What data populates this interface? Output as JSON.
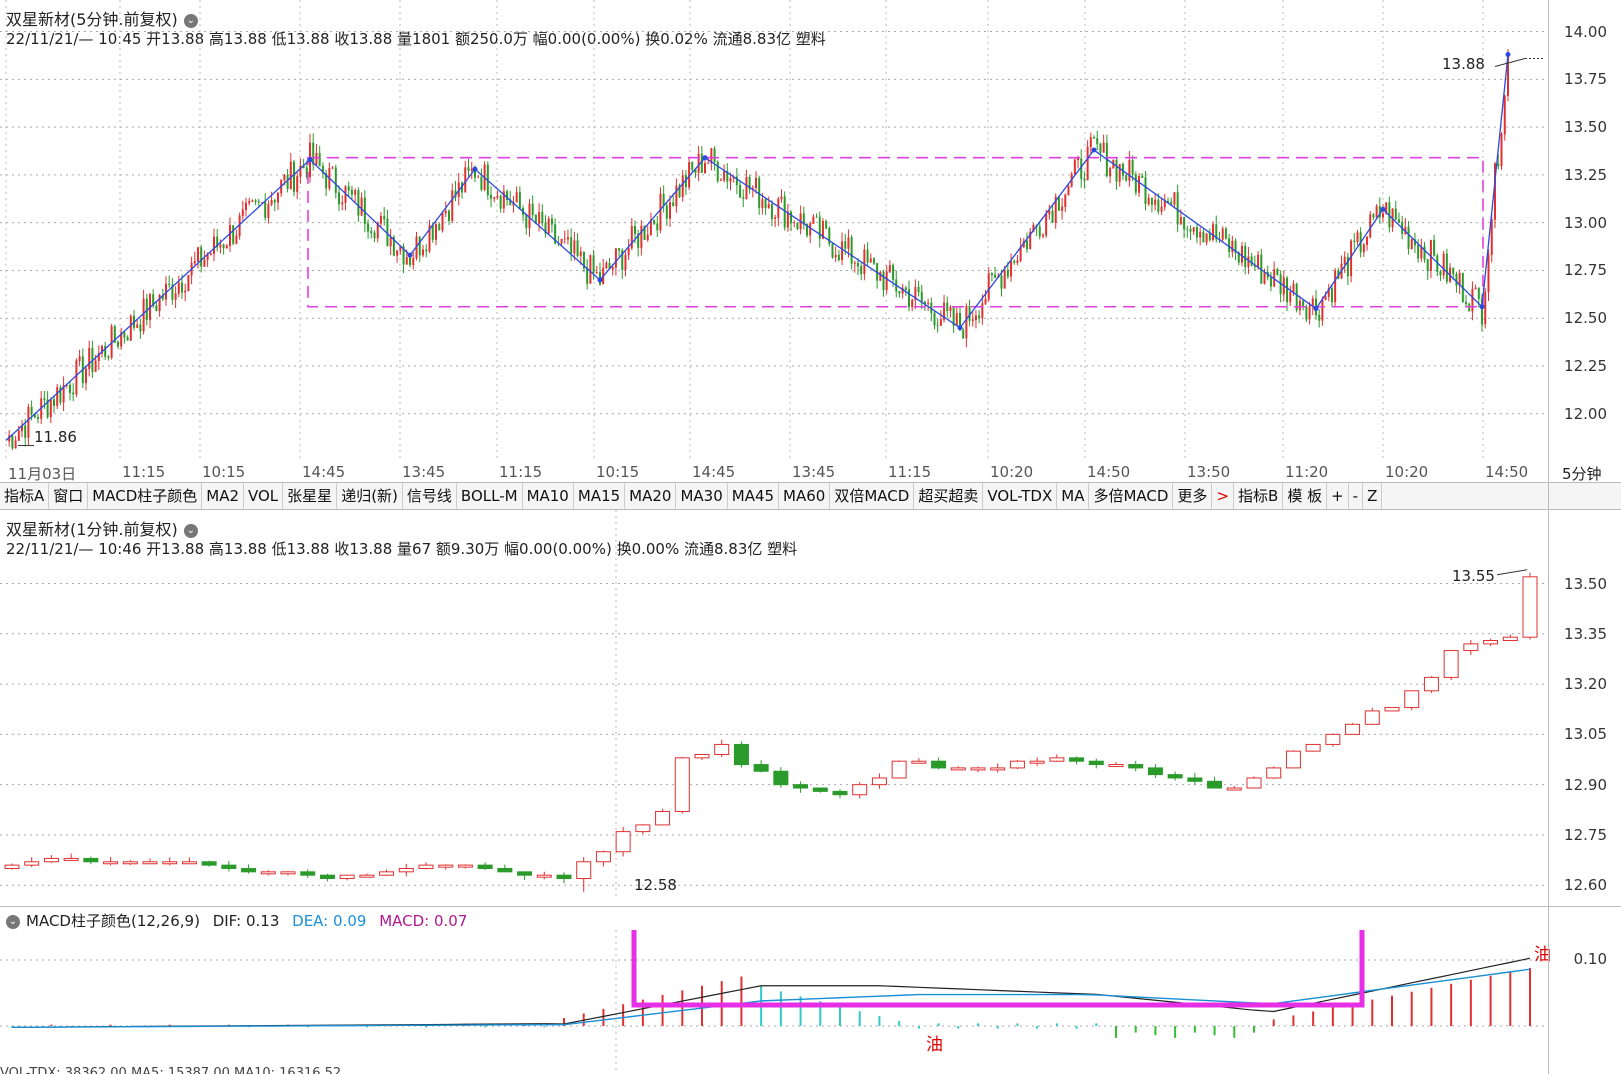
{
  "top": {
    "title": "双星新材(5分钟.前复权)",
    "info": "22/11/21/— 10:45 开13.88 高13.88 低13.88 收13.88 量1801 额250.0万 幅0.00(0.00%) 换0.02% 流通8.83亿 塑料",
    "yaxis": [
      "14.00",
      "13.75",
      "13.50",
      "13.25",
      "13.00",
      "12.75",
      "12.50",
      "12.25",
      "12.00"
    ],
    "high_mark": "13.88",
    "low_mark": "11.86",
    "times": [
      "11月03日",
      "11:15",
      "10:15",
      "14:45",
      "13:45",
      "11:15",
      "10:15",
      "14:45",
      "13:45",
      "11:15",
      "10:20",
      "14:50",
      "13:50",
      "11:20",
      "10:20",
      "14:50"
    ],
    "period": "5分钟"
  },
  "tabs": [
    "指标A",
    "窗口",
    "MACD柱子颜色",
    "MA2",
    "VOL",
    "张星星",
    "递归(新)",
    "信号线",
    "BOLL-M",
    "MA10",
    "MA15",
    "MA20",
    "MA30",
    "MA45",
    "MA60",
    "双倍MACD",
    "超买超卖",
    "VOL-TDX",
    "MA",
    "多倍MACD",
    "更多",
    ">",
    "指标B",
    "模 板",
    "+",
    "-",
    "Z"
  ],
  "mid": {
    "title": "双星新材(1分钟.前复权)",
    "info": "22/11/21/— 10:46 开13.88 高13.88 低13.88 收13.88 量67 额9.30万 幅0.00(0.00%) 换0.00% 流通8.83亿 塑料",
    "yaxis": [
      "13.50",
      "13.35",
      "13.20",
      "13.05",
      "12.90",
      "12.75",
      "12.60"
    ],
    "high_mark": "13.55",
    "low_mark": "12.58"
  },
  "macd": {
    "title": "MACD柱子颜色(12,26,9)",
    "dif": "DIF: 0.13",
    "dea": "DEA: 0.09",
    "macd": "MACD: 0.07",
    "yaxis": [
      "0.10"
    ],
    "oil1": "油",
    "oil2": "油",
    "colors": {
      "dif": "#222222",
      "dea": "#1a8fd6",
      "macd": "#b01890",
      "box": "#e52ee5"
    }
  },
  "bottom": {
    "partial": "VOL-TDX: 38362.00 MA5: 15387.00 MA10: 16316.52"
  },
  "chart_data": [
    {
      "type": "candlestick",
      "title": "双星新材(5分钟.前复权)",
      "ylim": [
        11.8,
        14.05
      ],
      "annotations": [
        "13.88",
        "11.86"
      ],
      "zigzag_pivots": [
        11.86,
        13.33,
        12.83,
        13.28,
        12.7,
        13.34,
        12.45,
        13.38,
        12.55,
        13.07,
        12.56,
        13.88
      ],
      "box_range": [
        12.56,
        13.34
      ],
      "x": [
        "11月03日",
        "11:15",
        "10:15",
        "14:45",
        "13:45",
        "11:15",
        "10:15",
        "14:45",
        "13:45",
        "11:15",
        "10:20",
        "14:50",
        "13:50",
        "11:20",
        "10:20",
        "14:50"
      ]
    },
    {
      "type": "candlestick",
      "title": "双星新材(1分钟.前复权)",
      "ylim": [
        12.55,
        13.6
      ],
      "annotations": [
        "13.55",
        "12.58"
      ],
      "close": [
        12.66,
        12.67,
        12.68,
        12.68,
        12.67,
        12.67,
        12.67,
        12.67,
        12.67,
        12.67,
        12.66,
        12.65,
        12.64,
        12.64,
        12.64,
        12.63,
        12.62,
        12.63,
        12.63,
        12.64,
        12.65,
        12.66,
        12.66,
        12.66,
        12.65,
        12.64,
        12.63,
        12.63,
        12.62,
        12.67,
        12.7,
        12.76,
        12.78,
        12.82,
        12.98,
        12.99,
        13.02,
        12.96,
        12.94,
        12.9,
        12.89,
        12.88,
        12.87,
        12.9,
        12.92,
        12.97,
        12.97,
        12.95,
        12.95,
        12.95,
        12.95,
        12.97,
        12.97,
        12.98,
        12.97,
        12.96,
        12.96,
        12.95,
        12.93,
        12.92,
        12.91,
        12.89,
        12.89,
        12.92,
        12.95,
        13.0,
        13.02,
        13.05,
        13.08,
        13.12,
        13.13,
        13.18,
        13.22,
        13.3,
        13.32,
        13.33,
        13.34,
        13.52
      ]
    },
    {
      "type": "bar",
      "title": "MACD柱子颜色(12,26,9)",
      "series": [
        {
          "name": "DIF",
          "values": [
            0.13
          ]
        },
        {
          "name": "DEA",
          "values": [
            0.09
          ]
        },
        {
          "name": "MACD",
          "values": [
            0.07
          ]
        }
      ]
    }
  ]
}
